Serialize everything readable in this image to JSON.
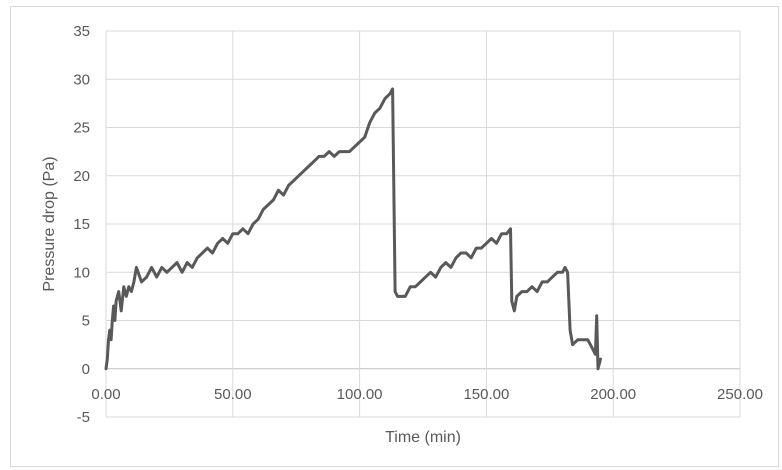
{
  "chart_data": {
    "type": "line",
    "title": "",
    "xlabel": "Time (min)",
    "ylabel": "Pressure drop (Pa)",
    "xlim": [
      0,
      250
    ],
    "ylim": [
      -5,
      35
    ],
    "x_tick_labels": [
      "0.00",
      "50.00",
      "100.00",
      "150.00",
      "200.00",
      "250.00"
    ],
    "y_tick_labels": [
      "-5",
      "0",
      "5",
      "10",
      "15",
      "20",
      "25",
      "30",
      "35"
    ],
    "grid": true,
    "legend": "none",
    "series": [
      {
        "color": "#595959",
        "points": [
          [
            0,
            0
          ],
          [
            0.5,
            1
          ],
          [
            1,
            3
          ],
          [
            1.5,
            4
          ],
          [
            2,
            3
          ],
          [
            2.5,
            5
          ],
          [
            3,
            6.5
          ],
          [
            3.5,
            5
          ],
          [
            4,
            7
          ],
          [
            5,
            8
          ],
          [
            6,
            6
          ],
          [
            7,
            8.5
          ],
          [
            8,
            7.5
          ],
          [
            9,
            8.5
          ],
          [
            10,
            8
          ],
          [
            11,
            9
          ],
          [
            12,
            10.5
          ],
          [
            14,
            9
          ],
          [
            16,
            9.5
          ],
          [
            18,
            10.5
          ],
          [
            20,
            9.5
          ],
          [
            22,
            10.5
          ],
          [
            24,
            10
          ],
          [
            26,
            10.5
          ],
          [
            28,
            11
          ],
          [
            30,
            10
          ],
          [
            32,
            11
          ],
          [
            34,
            10.5
          ],
          [
            36,
            11.5
          ],
          [
            38,
            12
          ],
          [
            40,
            12.5
          ],
          [
            42,
            12
          ],
          [
            44,
            13
          ],
          [
            46,
            13.5
          ],
          [
            48,
            13
          ],
          [
            50,
            14
          ],
          [
            52,
            14
          ],
          [
            54,
            14.5
          ],
          [
            56,
            14
          ],
          [
            58,
            15
          ],
          [
            60,
            15.5
          ],
          [
            62,
            16.5
          ],
          [
            64,
            17
          ],
          [
            66,
            17.5
          ],
          [
            68,
            18.5
          ],
          [
            70,
            18
          ],
          [
            72,
            19
          ],
          [
            74,
            19.5
          ],
          [
            76,
            20
          ],
          [
            78,
            20.5
          ],
          [
            80,
            21
          ],
          [
            82,
            21.5
          ],
          [
            84,
            22
          ],
          [
            86,
            22
          ],
          [
            88,
            22.5
          ],
          [
            90,
            22
          ],
          [
            92,
            22.5
          ],
          [
            94,
            22.5
          ],
          [
            96,
            22.5
          ],
          [
            98,
            23
          ],
          [
            100,
            23.5
          ],
          [
            102,
            24
          ],
          [
            104,
            25.5
          ],
          [
            106,
            26.5
          ],
          [
            108,
            27
          ],
          [
            110,
            28
          ],
          [
            112,
            28.5
          ],
          [
            113,
            29
          ],
          [
            114,
            8
          ],
          [
            115,
            7.5
          ],
          [
            116,
            7.5
          ],
          [
            118,
            7.5
          ],
          [
            120,
            8.5
          ],
          [
            122,
            8.5
          ],
          [
            124,
            9
          ],
          [
            126,
            9.5
          ],
          [
            128,
            10
          ],
          [
            130,
            9.5
          ],
          [
            132,
            10.5
          ],
          [
            134,
            11
          ],
          [
            136,
            10.5
          ],
          [
            138,
            11.5
          ],
          [
            140,
            12
          ],
          [
            142,
            12
          ],
          [
            144,
            11.5
          ],
          [
            146,
            12.5
          ],
          [
            148,
            12.5
          ],
          [
            150,
            13
          ],
          [
            152,
            13.5
          ],
          [
            154,
            13
          ],
          [
            156,
            14
          ],
          [
            158,
            14
          ],
          [
            159.5,
            14.5
          ],
          [
            160,
            7
          ],
          [
            161,
            6
          ],
          [
            162,
            7.5
          ],
          [
            164,
            8
          ],
          [
            166,
            8
          ],
          [
            168,
            8.5
          ],
          [
            170,
            8
          ],
          [
            172,
            9
          ],
          [
            174,
            9
          ],
          [
            176,
            9.5
          ],
          [
            178,
            10
          ],
          [
            180,
            10
          ],
          [
            181,
            10.5
          ],
          [
            182,
            10
          ],
          [
            183,
            4
          ],
          [
            184,
            2.5
          ],
          [
            186,
            3
          ],
          [
            188,
            3
          ],
          [
            190,
            3
          ],
          [
            192,
            2
          ],
          [
            193,
            1.5
          ],
          [
            193.5,
            5.5
          ],
          [
            194,
            0
          ],
          [
            195,
            1
          ]
        ]
      }
    ]
  }
}
